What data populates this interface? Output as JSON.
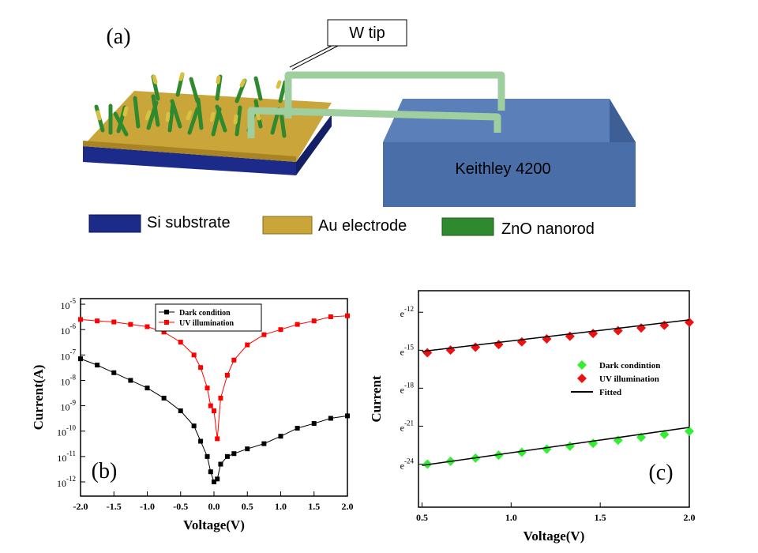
{
  "diagram": {
    "panel_label": "(a)",
    "callout": "W tip",
    "instrument": "Keithley 4200",
    "legend": [
      "Si substrate",
      "Au electrode",
      "ZnO nanorod"
    ]
  },
  "chart_data": [
    {
      "type": "line",
      "panel_label": "(b)",
      "x_label": "Voltage(V)",
      "y_label": "Current(A)",
      "x": [
        -2,
        -1.75,
        -1.5,
        -1.25,
        -1,
        -0.75,
        -0.5,
        -0.3,
        -0.2,
        -0.1,
        -0.05,
        0,
        0.05,
        0.1,
        0.2,
        0.3,
        0.5,
        0.75,
        1,
        1.25,
        1.5,
        1.75,
        2
      ],
      "series": [
        {
          "name": "Dark condition",
          "color": "#000000",
          "marker": "square",
          "values": [
            7.1e-08,
            4e-08,
            2e-08,
            1e-08,
            5e-09,
            2e-09,
            6.3e-10,
            1.6e-10,
            4e-11,
            1e-11,
            2.5e-12,
            1e-12,
            1.3e-12,
            5e-12,
            1e-11,
            1.3e-11,
            2e-11,
            3.2e-11,
            6.3e-11,
            1.3e-10,
            2e-10,
            3.2e-10,
            4e-10
          ]
        },
        {
          "name": "UV illumination",
          "color": "#ff0000",
          "marker": "square",
          "values": [
            2.5e-06,
            2.2e-06,
            2e-06,
            1.6e-06,
            1.3e-06,
            8e-07,
            3.2e-07,
            1e-07,
            3.2e-08,
            5e-09,
            1e-09,
            6.3e-10,
            5e-11,
            2e-09,
            1.6e-08,
            6.3e-08,
            2.5e-07,
            6.3e-07,
            1e-06,
            1.6e-06,
            2.2e-06,
            3.2e-06,
            3.5e-06
          ]
        }
      ],
      "xlim": [
        -2,
        2
      ],
      "xticks": [
        {
          "value": -2,
          "label": "-2.0"
        },
        {
          "value": -1.5,
          "label": "-1.5"
        },
        {
          "value": -1,
          "label": "-1.0"
        },
        {
          "value": -0.5,
          "label": "-0.5"
        },
        {
          "value": 0,
          "label": "0.0"
        },
        0.5,
        {
          "value": 1,
          "label": "1.0"
        },
        1.5,
        {
          "value": 2,
          "label": "2.0"
        }
      ],
      "log_y": true,
      "ylim": [
        2.75e-13,
        1.66e-05
      ],
      "yticks": [
        {
          "value": 1e-05,
          "label": "10",
          "exponent": "-5"
        },
        {
          "value": 1e-06,
          "label": "10",
          "exponent": "-6"
        },
        {
          "value": 1e-07,
          "label": "10",
          "exponent": "-7"
        },
        {
          "value": 1e-08,
          "label": "10",
          "exponent": "-8"
        },
        {
          "value": 1e-09,
          "label": "10",
          "exponent": "-9"
        },
        {
          "value": 1e-10,
          "label": "10",
          "exponent": "-10"
        },
        {
          "value": 1e-11,
          "label": "10",
          "exponent": "-11"
        },
        {
          "value": 1e-12,
          "label": "10",
          "exponent": "-12"
        }
      ],
      "legend": "upper-center",
      "legend_frame": true
    },
    {
      "type": "scatter",
      "panel_label": "(c)",
      "x_label": "Voltage(V)",
      "y_label": "Current",
      "x": [
        0.53,
        0.66,
        0.8,
        0.93,
        1.06,
        1.2,
        1.33,
        1.46,
        1.6,
        1.73,
        1.86,
        2.0
      ],
      "series": [
        {
          "name": "Dark condintion",
          "color": "#33ee33",
          "marker": "diamond",
          "values": [
            3.775e-11,
            4.751e-11,
            6.101e-11,
            7.679e-11,
            9.664e-11,
            1.241e-10,
            1.562e-10,
            1.965e-10,
            2.498e-10,
            3.145e-10,
            3.958e-10,
            5.083e-10
          ]
        },
        {
          "name": "UV illumination",
          "color": "#ee1111",
          "marker": "diamond",
          "values": [
            2.504e-07,
            3.09e-07,
            3.889e-07,
            4.797e-07,
            5.918e-07,
            7.449e-07,
            9.19e-07,
            1.145e-06,
            1.427e-06,
            1.778e-06,
            2.193e-06,
            2.76e-06
          ]
        },
        {
          "name": "Fitted",
          "color": "#000000",
          "marker": "line",
          "lines": [
            {
              "x": [
                0.5,
                2.0
              ],
              "values": [
                3.416e-11,
                6.861e-10
              ]
            },
            {
              "x": [
                0.5,
                2.0
              ],
              "values": [
                2.768e-07,
                3.372e-06
              ]
            }
          ]
        }
      ],
      "xlim": [
        0.48,
        2.0
      ],
      "xticks": [
        0.5,
        {
          "value": 1,
          "label": "1.0"
        },
        1.5,
        {
          "value": 2,
          "label": "2.0"
        }
      ],
      "log_y": true,
      "ylim": [
        1.26e-12,
        3.363e-05
      ],
      "yticks": [
        {
          "value": 6.144e-06,
          "label": "e",
          "exponent": "-12"
        },
        {
          "value": 3.059e-07,
          "label": "e",
          "exponent": "-15"
        },
        {
          "value": 1.523e-08,
          "label": "e",
          "exponent": "-18"
        },
        {
          "value": 7.583e-10,
          "label": "e",
          "exponent": "-21"
        },
        {
          "value": 3.775e-11,
          "label": "e",
          "exponent": "-24"
        }
      ],
      "legend": "center-right",
      "legend_frame": false
    }
  ]
}
